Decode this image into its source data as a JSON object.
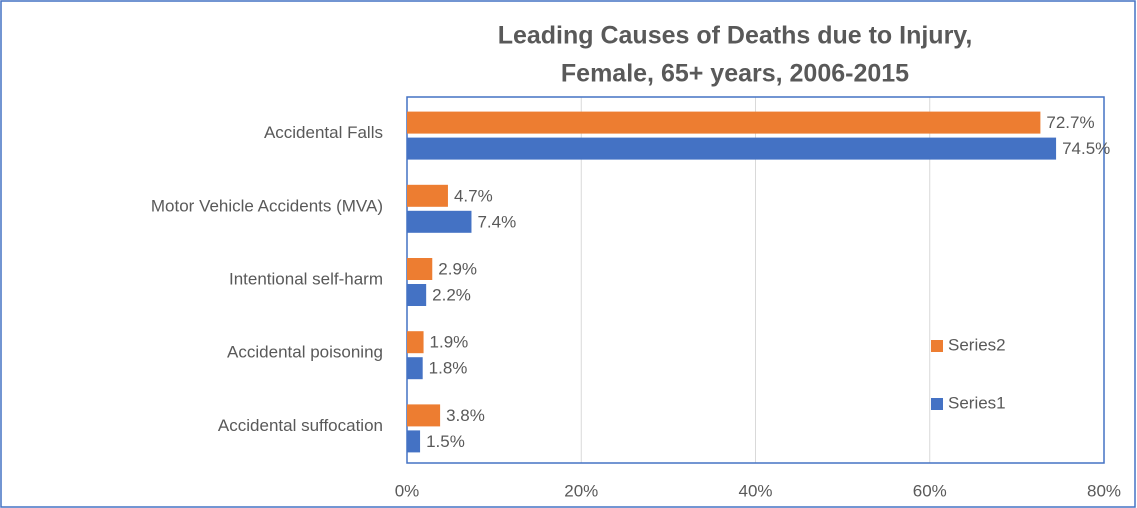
{
  "chart_data": {
    "type": "bar",
    "orientation": "horizontal",
    "title": [
      "Leading Causes of Deaths due to Injury,",
      "Female, 65+ years, 2006-2015"
    ],
    "categories": [
      "Accidental Falls",
      "Motor Vehicle Accidents (MVA)",
      "Intentional self-harm",
      "Accidental poisoning",
      "Accidental suffocation"
    ],
    "series": [
      {
        "name": "Series1",
        "color": "#4472c4",
        "values": [
          74.5,
          7.4,
          2.2,
          1.8,
          1.5
        ],
        "value_labels": [
          "74.5%",
          "7.4%",
          "2.2%",
          "1.8%",
          "1.5%"
        ]
      },
      {
        "name": "Series2",
        "color": "#ed7d31",
        "values": [
          72.7,
          4.7,
          2.9,
          1.9,
          3.8
        ],
        "value_labels": [
          "72.7%",
          "4.7%",
          "2.9%",
          "1.9%",
          "3.8%"
        ]
      }
    ],
    "xlim": [
      0,
      80
    ],
    "xticks": [
      {
        "value": 0,
        "label": "0%"
      },
      {
        "value": 20,
        "label": "20%"
      },
      {
        "value": 40,
        "label": "40%"
      },
      {
        "value": 60,
        "label": "60%"
      },
      {
        "value": 80,
        "label": "80%"
      }
    ],
    "grid": true,
    "legend": "right"
  }
}
